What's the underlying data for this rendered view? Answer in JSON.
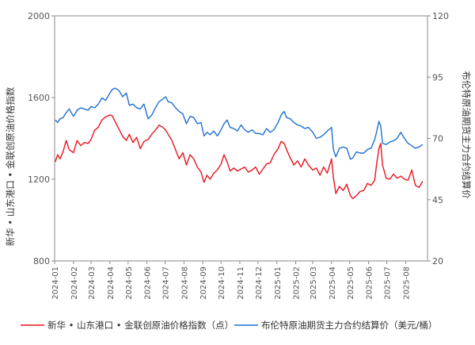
{
  "chart_data": {
    "type": "line",
    "ylabel_left": "新华 • 山东港口 • 金联创原油价格指数",
    "ylabel_right": "布伦特原油期货主力合约结算价",
    "ylim_left": [
      800,
      2000
    ],
    "ylim_right": [
      20,
      120
    ],
    "yticks_left": [
      800,
      1200,
      1600,
      2000
    ],
    "yticks_right": [
      20,
      45,
      70,
      95,
      120
    ],
    "x_tick_labels": [
      "2024-01",
      "2024-02",
      "2024-03",
      "2024-04",
      "2024-05",
      "2024-06",
      "2024-07",
      "2024-08",
      "2024-09",
      "2024-10",
      "2024-11",
      "2024-12",
      "2025-01",
      "2025-02",
      "2025-03",
      "2025-04",
      "2025-05",
      "2025-06",
      "2025-07",
      "2025-08"
    ],
    "grid": false,
    "legend_position": "bottom",
    "series": [
      {
        "name": "新华 • 山东港口 • 金联创原油价格指数（点）",
        "axis": "left",
        "color": "#e8141e",
        "x": [
          "2024-01-02",
          "2024-01-06",
          "2024-01-10",
          "2024-01-15",
          "2024-01-20",
          "2024-01-25",
          "2024-02-01",
          "2024-02-07",
          "2024-02-13",
          "2024-02-19",
          "2024-02-25",
          "2024-03-01",
          "2024-03-07",
          "2024-03-13",
          "2024-03-19",
          "2024-03-25",
          "2024-04-01",
          "2024-04-05",
          "2024-04-10",
          "2024-04-16",
          "2024-04-22",
          "2024-04-28",
          "2024-05-03",
          "2024-05-09",
          "2024-05-15",
          "2024-05-21",
          "2024-05-27",
          "2024-06-03",
          "2024-06-09",
          "2024-06-15",
          "2024-06-21",
          "2024-06-27",
          "2024-07-02",
          "2024-07-06",
          "2024-07-12",
          "2024-07-18",
          "2024-07-24",
          "2024-07-30",
          "2024-08-05",
          "2024-08-11",
          "2024-08-17",
          "2024-08-23",
          "2024-08-29",
          "2024-09-03",
          "2024-09-08",
          "2024-09-13",
          "2024-09-19",
          "2024-09-25",
          "2024-10-01",
          "2024-10-06",
          "2024-10-11",
          "2024-10-16",
          "2024-10-22",
          "2024-10-28",
          "2024-11-03",
          "2024-11-09",
          "2024-11-15",
          "2024-11-21",
          "2024-11-27",
          "2024-12-03",
          "2024-12-09",
          "2024-12-15",
          "2024-12-21",
          "2024-12-27",
          "2025-01-03",
          "2025-01-08",
          "2025-01-13",
          "2025-01-17",
          "2025-01-23",
          "2025-01-29",
          "2025-02-04",
          "2025-02-10",
          "2025-02-16",
          "2025-02-22",
          "2025-03-01",
          "2025-03-07",
          "2025-03-13",
          "2025-03-19",
          "2025-03-25",
          "2025-04-01",
          "2025-04-04",
          "2025-04-08",
          "2025-04-14",
          "2025-04-20",
          "2025-04-26",
          "2025-05-02",
          "2025-05-06",
          "2025-05-12",
          "2025-05-18",
          "2025-05-24",
          "2025-05-30",
          "2025-06-05",
          "2025-06-11",
          "2025-06-14",
          "2025-06-18",
          "2025-06-21",
          "2025-06-24",
          "2025-06-30",
          "2025-07-06",
          "2025-07-12",
          "2025-07-18",
          "2025-07-24",
          "2025-07-30",
          "2025-08-05",
          "2025-08-11",
          "2025-08-17",
          "2025-08-23",
          "2025-08-29"
        ],
        "values": [
          1285,
          1320,
          1300,
          1335,
          1390,
          1345,
          1330,
          1390,
          1365,
          1380,
          1375,
          1395,
          1440,
          1455,
          1490,
          1505,
          1515,
          1510,
          1480,
          1445,
          1410,
          1390,
          1420,
          1380,
          1405,
          1350,
          1385,
          1395,
          1420,
          1440,
          1465,
          1455,
          1440,
          1420,
          1390,
          1345,
          1300,
          1330,
          1270,
          1320,
          1300,
          1260,
          1235,
          1185,
          1220,
          1200,
          1230,
          1245,
          1275,
          1320,
          1285,
          1240,
          1255,
          1240,
          1250,
          1260,
          1235,
          1245,
          1260,
          1225,
          1250,
          1275,
          1280,
          1320,
          1350,
          1385,
          1375,
          1345,
          1305,
          1270,
          1290,
          1260,
          1300,
          1270,
          1245,
          1255,
          1220,
          1260,
          1230,
          1300,
          1210,
          1130,
          1165,
          1145,
          1175,
          1120,
          1105,
          1120,
          1140,
          1145,
          1180,
          1170,
          1195,
          1270,
          1350,
          1375,
          1270,
          1205,
          1200,
          1225,
          1205,
          1215,
          1200,
          1195,
          1245,
          1170,
          1160,
          1190
        ]
      },
      {
        "name": "布伦特原油期货主力合约结算价（美元/桶）",
        "axis": "right",
        "color": "#1f6fd6",
        "x": [
          "2024-01-02",
          "2024-01-06",
          "2024-01-10",
          "2024-01-15",
          "2024-01-20",
          "2024-01-25",
          "2024-02-01",
          "2024-02-07",
          "2024-02-13",
          "2024-02-19",
          "2024-02-25",
          "2024-03-01",
          "2024-03-07",
          "2024-03-13",
          "2024-03-19",
          "2024-03-25",
          "2024-04-01",
          "2024-04-05",
          "2024-04-10",
          "2024-04-16",
          "2024-04-22",
          "2024-04-28",
          "2024-05-03",
          "2024-05-09",
          "2024-05-15",
          "2024-05-21",
          "2024-05-27",
          "2024-06-03",
          "2024-06-09",
          "2024-06-15",
          "2024-06-21",
          "2024-06-27",
          "2024-07-02",
          "2024-07-06",
          "2024-07-12",
          "2024-07-18",
          "2024-07-24",
          "2024-07-30",
          "2024-08-05",
          "2024-08-11",
          "2024-08-17",
          "2024-08-23",
          "2024-08-29",
          "2024-09-03",
          "2024-09-08",
          "2024-09-13",
          "2024-09-19",
          "2024-09-25",
          "2024-10-01",
          "2024-10-06",
          "2024-10-11",
          "2024-10-16",
          "2024-10-22",
          "2024-10-28",
          "2024-11-03",
          "2024-11-09",
          "2024-11-15",
          "2024-11-21",
          "2024-11-27",
          "2024-12-03",
          "2024-12-09",
          "2024-12-15",
          "2024-12-21",
          "2024-12-27",
          "2025-01-03",
          "2025-01-08",
          "2025-01-13",
          "2025-01-17",
          "2025-01-23",
          "2025-01-29",
          "2025-02-04",
          "2025-02-10",
          "2025-02-16",
          "2025-02-22",
          "2025-03-01",
          "2025-03-07",
          "2025-03-13",
          "2025-03-19",
          "2025-03-25",
          "2025-04-01",
          "2025-04-04",
          "2025-04-08",
          "2025-04-14",
          "2025-04-20",
          "2025-04-26",
          "2025-05-02",
          "2025-05-06",
          "2025-05-12",
          "2025-05-18",
          "2025-05-24",
          "2025-05-30",
          "2025-06-05",
          "2025-06-11",
          "2025-06-14",
          "2025-06-18",
          "2025-06-21",
          "2025-06-24",
          "2025-06-30",
          "2025-07-06",
          "2025-07-12",
          "2025-07-18",
          "2025-07-24",
          "2025-07-30",
          "2025-08-05",
          "2025-08-11",
          "2025-08-17",
          "2025-08-23",
          "2025-08-29"
        ],
        "values": [
          77.5,
          76.5,
          78.0,
          78.5,
          80.5,
          82.0,
          79.0,
          81.5,
          82.5,
          82.0,
          81.5,
          83.0,
          82.5,
          84.0,
          86.5,
          85.5,
          88.5,
          90.0,
          90.5,
          89.5,
          87.0,
          88.5,
          83.5,
          84.0,
          82.5,
          82.0,
          84.0,
          78.0,
          79.5,
          82.5,
          85.0,
          86.0,
          87.0,
          85.0,
          84.5,
          82.5,
          81.0,
          80.0,
          76.0,
          79.0,
          78.5,
          76.0,
          76.5,
          71.0,
          72.5,
          71.5,
          73.0,
          71.0,
          73.5,
          76.0,
          77.5,
          74.5,
          74.0,
          73.0,
          75.5,
          73.5,
          72.5,
          73.5,
          72.0,
          72.0,
          71.5,
          74.0,
          72.5,
          73.5,
          76.5,
          79.5,
          81.0,
          78.5,
          78.0,
          76.5,
          75.5,
          75.0,
          74.0,
          74.5,
          72.5,
          70.0,
          70.5,
          71.5,
          73.0,
          74.5,
          65.5,
          62.5,
          66.0,
          66.5,
          66.0,
          61.5,
          62.0,
          64.5,
          64.0,
          64.0,
          65.5,
          66.0,
          69.5,
          72.5,
          77.0,
          75.0,
          68.0,
          67.5,
          68.5,
          69.0,
          70.0,
          72.5,
          70.0,
          68.0,
          67.0,
          66.0,
          66.5,
          67.5
        ]
      }
    ]
  }
}
